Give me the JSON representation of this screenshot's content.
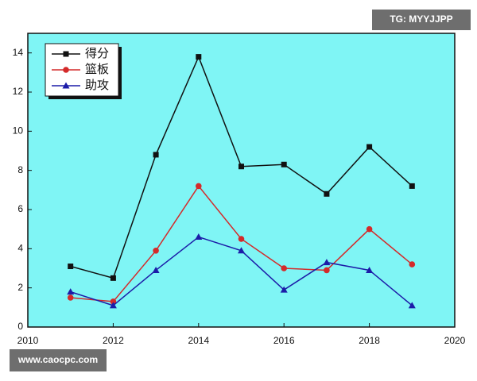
{
  "chart_data": {
    "type": "line",
    "x": [
      2011,
      2012,
      2013,
      2014,
      2015,
      2016,
      2017,
      2018,
      2019
    ],
    "series": [
      {
        "name": "得分",
        "color": "#111111",
        "marker": "square",
        "values": [
          3.1,
          2.5,
          8.8,
          13.8,
          8.2,
          8.3,
          6.8,
          9.2,
          7.2
        ]
      },
      {
        "name": "篮板",
        "color": "#d42a2a",
        "marker": "circle",
        "values": [
          1.5,
          1.3,
          3.9,
          7.2,
          4.5,
          3.0,
          2.9,
          5.0,
          3.2
        ]
      },
      {
        "name": "助攻",
        "color": "#1c1ca8",
        "marker": "triangle",
        "values": [
          1.8,
          1.1,
          2.9,
          4.6,
          3.9,
          1.9,
          3.3,
          2.9,
          1.1
        ]
      }
    ],
    "xlim": [
      2010,
      2020
    ],
    "xticks": [
      2010,
      2012,
      2014,
      2016,
      2018,
      2020
    ],
    "ylim": [
      0,
      15
    ],
    "yticks": [
      0,
      2,
      4,
      6,
      8,
      10,
      12,
      14
    ],
    "background": "#7ff5f5",
    "legend": "top-left"
  },
  "watermarks": {
    "top": "TG: MYYJJPP",
    "bottom": "www.caocpc.com"
  }
}
